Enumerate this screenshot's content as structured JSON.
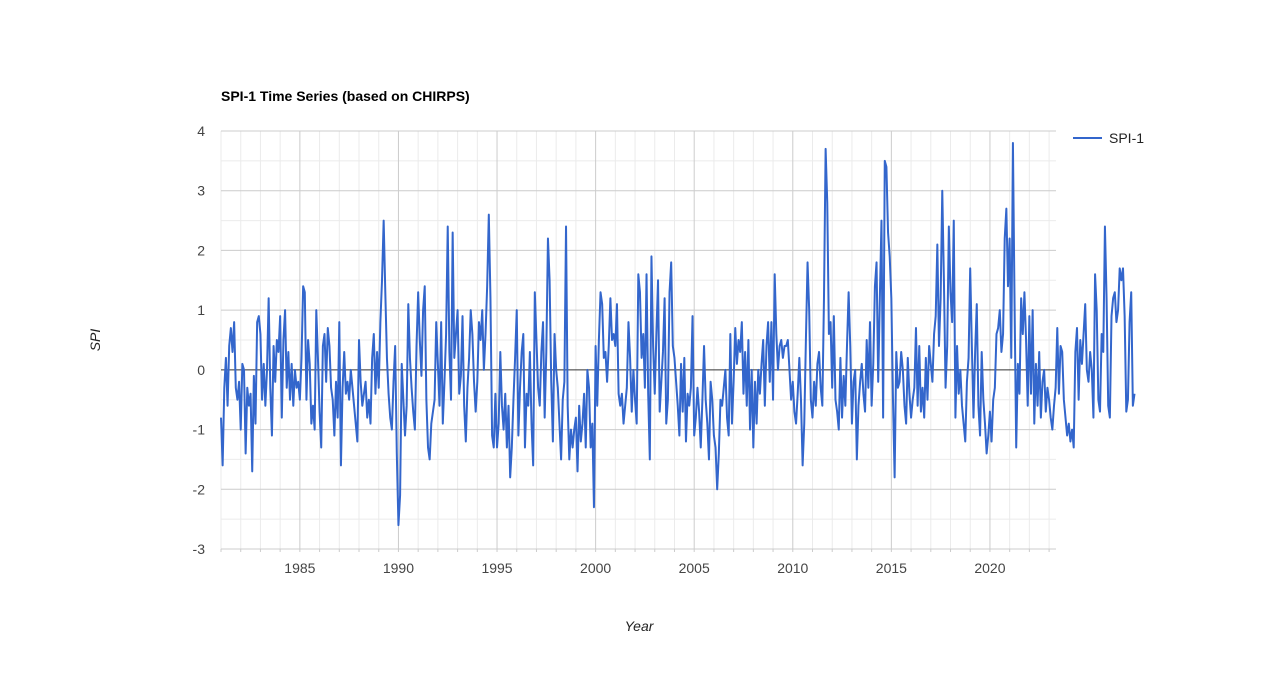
{
  "chart_data": {
    "type": "line",
    "title": "SPI-1 Time Series (based on CHIRPS)",
    "xlabel": "Year",
    "ylabel": "SPI",
    "xlim": [
      1981.0,
      2023.35
    ],
    "ylim": [
      -3,
      4
    ],
    "x_ticks": [
      1985,
      1990,
      1995,
      2000,
      2005,
      2010,
      2015,
      2020
    ],
    "y_ticks": [
      -3,
      -2,
      -1,
      0,
      1,
      2,
      3,
      4
    ],
    "grid": true,
    "legend": "right",
    "colors": {
      "series": "#3366cc",
      "grid": "#cccccc",
      "minor_grid": "#ebebeb",
      "baseline": "#333333"
    },
    "series": [
      {
        "name": "SPI-1",
        "x_start": 1981.0,
        "x_step": 0.08333,
        "values": [
          -0.8,
          -1.6,
          -0.3,
          0.2,
          -0.6,
          0.4,
          0.7,
          0.3,
          0.8,
          -0.3,
          -0.5,
          -0.2,
          -1.0,
          0.1,
          0.0,
          -1.4,
          -0.3,
          -0.6,
          -0.4,
          -1.7,
          -0.1,
          -0.9,
          0.8,
          0.9,
          0.6,
          -0.5,
          0.1,
          -0.6,
          0.0,
          1.2,
          -0.3,
          -1.1,
          0.4,
          -0.2,
          0.5,
          0.3,
          0.9,
          -0.8,
          0.5,
          1.0,
          -0.3,
          0.3,
          -0.5,
          0.1,
          -0.6,
          0.0,
          -0.3,
          -0.2,
          -0.5,
          0.2,
          1.4,
          1.3,
          -0.5,
          0.5,
          0.1,
          -0.9,
          -0.6,
          -1.0,
          1.0,
          0.2,
          -0.7,
          -1.3,
          0.4,
          0.6,
          -0.2,
          0.7,
          0.4,
          -0.3,
          -0.5,
          -1.1,
          -0.2,
          -0.8,
          0.8,
          -1.6,
          -0.3,
          0.3,
          -0.4,
          -0.2,
          -0.5,
          0.0,
          -0.3,
          -0.6,
          -0.9,
          -1.2,
          0.5,
          -0.2,
          -0.6,
          -0.4,
          -0.2,
          -0.8,
          -0.5,
          -0.9,
          0.2,
          0.6,
          -0.4,
          0.3,
          -0.3,
          0.8,
          1.5,
          2.5,
          1.3,
          0.2,
          -0.4,
          -0.8,
          -1.0,
          -0.2,
          0.4,
          -1.4,
          -2.6,
          -2.1,
          0.1,
          -0.5,
          -1.1,
          -0.6,
          1.1,
          0.2,
          -0.3,
          -0.7,
          -1.0,
          0.4,
          1.3,
          0.5,
          -0.1,
          1.0,
          1.4,
          -0.5,
          -1.3,
          -1.5,
          -0.9,
          -0.7,
          -0.5,
          0.8,
          0.1,
          -0.6,
          0.8,
          -0.9,
          -0.2,
          0.6,
          2.4,
          0.3,
          -0.5,
          2.3,
          0.2,
          0.6,
          1.0,
          -0.4,
          -0.1,
          0.9,
          -0.6,
          -1.2,
          -0.3,
          0.2,
          1.0,
          0.6,
          -0.2,
          -0.7,
          -0.2,
          0.8,
          0.5,
          1.0,
          0.0,
          0.6,
          1.4,
          2.6,
          1.2,
          -1.1,
          -1.3,
          -0.4,
          -1.3,
          -0.9,
          0.3,
          -0.6,
          -1.0,
          -0.4,
          -1.3,
          -0.6,
          -1.8,
          -1.3,
          -0.5,
          0.2,
          1.0,
          -1.1,
          -0.3,
          0.3,
          0.6,
          -1.3,
          -0.4,
          -0.6,
          0.3,
          -0.9,
          -1.6,
          1.3,
          0.5,
          -0.3,
          -0.6,
          0.3,
          0.8,
          -0.8,
          0.3,
          2.2,
          1.5,
          -0.2,
          -1.2,
          0.6,
          0.0,
          -0.3,
          -0.9,
          -1.5,
          -0.5,
          -0.2,
          2.4,
          -0.6,
          -1.5,
          -1.0,
          -1.3,
          -1.0,
          -0.8,
          -1.7,
          -0.6,
          -1.2,
          -0.9,
          -0.4,
          -1.3,
          0.0,
          -0.3,
          -1.3,
          -0.9,
          -2.3,
          0.4,
          -0.6,
          0.5,
          1.3,
          1.1,
          0.2,
          0.3,
          -0.2,
          0.4,
          1.2,
          0.5,
          0.6,
          0.4,
          1.1,
          -0.4,
          -0.6,
          -0.4,
          -0.9,
          -0.6,
          -0.3,
          0.8,
          0.2,
          -0.7,
          0.0,
          -0.5,
          -0.9,
          1.6,
          1.3,
          0.2,
          0.6,
          -0.3,
          1.6,
          -0.4,
          -1.5,
          1.9,
          0.4,
          -0.4,
          0.6,
          1.5,
          -0.7,
          -0.2,
          0.3,
          1.2,
          -0.9,
          -0.5,
          1.3,
          1.8,
          0.4,
          0.2,
          -0.2,
          -0.6,
          -1.1,
          0.1,
          -0.7,
          0.2,
          -1.2,
          -0.4,
          -0.6,
          -0.3,
          0.9,
          -1.1,
          -0.8,
          -0.3,
          -0.7,
          -1.3,
          -0.5,
          0.4,
          -0.5,
          -0.9,
          -1.5,
          -0.2,
          -0.5,
          -1.1,
          -1.3,
          -2.0,
          -1.4,
          -0.5,
          -0.6,
          -0.3,
          0.0,
          -0.8,
          -1.1,
          0.6,
          -0.9,
          -0.2,
          0.7,
          0.1,
          0.5,
          0.3,
          0.8,
          -0.4,
          0.3,
          -0.6,
          0.5,
          -1.0,
          0.0,
          -1.3,
          -0.2,
          -0.9,
          0.0,
          -0.4,
          0.1,
          0.5,
          -0.6,
          0.4,
          0.8,
          -0.2,
          0.8,
          -0.5,
          1.6,
          0.6,
          0.0,
          0.4,
          0.5,
          0.2,
          0.4,
          0.4,
          0.5,
          0.0,
          -0.5,
          -0.2,
          -0.7,
          -0.9,
          -0.4,
          0.2,
          -0.5,
          -1.6,
          -0.9,
          0.5,
          1.8,
          1.0,
          -0.5,
          -0.8,
          -0.2,
          -0.6,
          0.1,
          0.3,
          -0.3,
          -0.6,
          1.2,
          3.7,
          2.8,
          0.6,
          0.8,
          -0.3,
          0.9,
          -0.5,
          -0.7,
          -1.0,
          0.2,
          -0.8,
          -0.1,
          -0.6,
          0.4,
          1.3,
          0.4,
          -0.9,
          -0.2,
          0.0,
          -1.5,
          -0.6,
          -0.2,
          0.1,
          -0.4,
          -0.7,
          0.5,
          -0.3,
          0.8,
          -0.6,
          0.1,
          1.4,
          1.8,
          -0.2,
          1.2,
          2.5,
          -0.8,
          3.5,
          3.4,
          2.3,
          1.9,
          1.2,
          -0.5,
          -1.8,
          0.3,
          -0.3,
          -0.2,
          0.3,
          0.0,
          -0.6,
          -0.9,
          0.2,
          -0.4,
          -0.8,
          -0.5,
          -0.3,
          0.7,
          -0.6,
          0.4,
          -0.7,
          -0.3,
          -0.8,
          0.2,
          -0.5,
          0.4,
          0.1,
          -0.2,
          0.6,
          0.9,
          2.1,
          0.4,
          1.2,
          3.0,
          1.5,
          -0.3,
          0.4,
          2.4,
          1.3,
          0.8,
          2.5,
          -0.8,
          0.4,
          -0.4,
          0.0,
          -0.6,
          -0.9,
          -1.2,
          -0.2,
          0.2,
          1.7,
          0.4,
          -0.8,
          0.3,
          1.1,
          -0.6,
          -1.1,
          0.3,
          -0.5,
          -0.9,
          -1.4,
          -1.1,
          -0.7,
          -1.2,
          -0.5,
          -0.3,
          0.6,
          0.7,
          1.0,
          0.3,
          0.6,
          2.2,
          2.7,
          1.4,
          2.2,
          0.2,
          3.8,
          1.1,
          -1.3,
          0.1,
          -0.4,
          1.2,
          0.6,
          1.3,
          0.5,
          -0.6,
          0.9,
          -0.4,
          1.0,
          -0.9,
          0.1,
          -0.6,
          0.3,
          -0.8,
          -0.2,
          0.0,
          -0.7,
          -0.3,
          -0.5,
          -0.8,
          -1.0,
          -0.6,
          -0.3,
          0.7,
          -0.4,
          0.4,
          0.3,
          -0.5,
          -0.8,
          -1.1,
          -0.9,
          -1.2,
          -1.0,
          -1.3,
          0.3,
          0.7,
          -0.5,
          0.5,
          0.1,
          0.6,
          1.1,
          0.0,
          -0.2,
          0.3,
          0.0,
          -0.8,
          1.6,
          1.0,
          -0.5,
          -0.7,
          0.6,
          0.3,
          2.4,
          1.2,
          -0.6,
          -0.8,
          0.9,
          1.2,
          1.3,
          0.8,
          1.0,
          1.7,
          1.5,
          1.7,
          0.9,
          -0.7,
          -0.5,
          0.8,
          1.3,
          -0.6,
          -0.4
        ]
      }
    ]
  }
}
